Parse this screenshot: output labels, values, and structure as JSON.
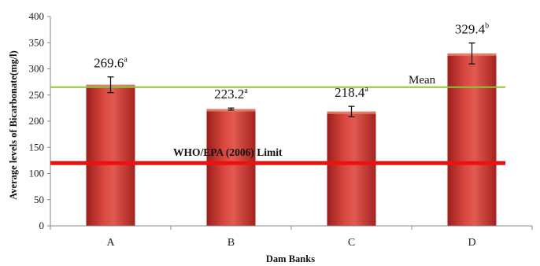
{
  "chart_data": {
    "type": "bar",
    "title": "",
    "xlabel": "Dam Banks",
    "ylabel": "Average levels of Bicarbonate(mg/l)",
    "categories": [
      "A",
      "B",
      "C",
      "D"
    ],
    "values": [
      269.6,
      223.2,
      218.4,
      329.4
    ],
    "errors": [
      15,
      2,
      10,
      20
    ],
    "data_labels": [
      "269.6",
      "223.2",
      "218.4",
      "329.4"
    ],
    "data_label_superscripts": [
      "a",
      "a",
      "a",
      "b"
    ],
    "ylim": [
      0,
      400
    ],
    "yticks": [
      0,
      50,
      100,
      150,
      200,
      250,
      300,
      350,
      400
    ],
    "bar_color": "#c0302c",
    "grid": false,
    "reference_lines": [
      {
        "label": "Mean",
        "value": 265,
        "color": "#8cc43c"
      },
      {
        "label": "WHO/EPA (2006) Limit",
        "value": 120,
        "color": "#ee1111"
      }
    ]
  }
}
